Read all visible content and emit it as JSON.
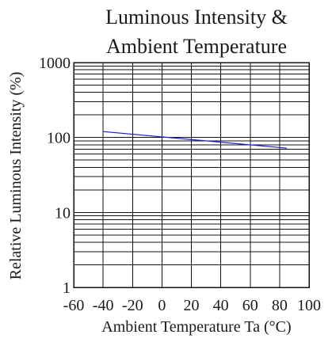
{
  "chart_data": {
    "type": "line",
    "title_lines": [
      "Luminous Intensity &",
      "Ambient Temperature"
    ],
    "xlabel": "Ambient Temperature Ta (°C)",
    "ylabel": "Relative Luminous Intensity (%)",
    "xlim": [
      -60,
      100
    ],
    "ylim": [
      1,
      1000
    ],
    "yscale": "log",
    "x_ticks": [
      -60,
      -40,
      -20,
      0,
      20,
      40,
      60,
      80,
      100
    ],
    "y_ticks": [
      1,
      10,
      100,
      1000
    ],
    "grid": true,
    "series": [
      {
        "color": "#1a1adb",
        "x": [
          -40,
          85
        ],
        "y": [
          120,
          72
        ]
      }
    ]
  }
}
